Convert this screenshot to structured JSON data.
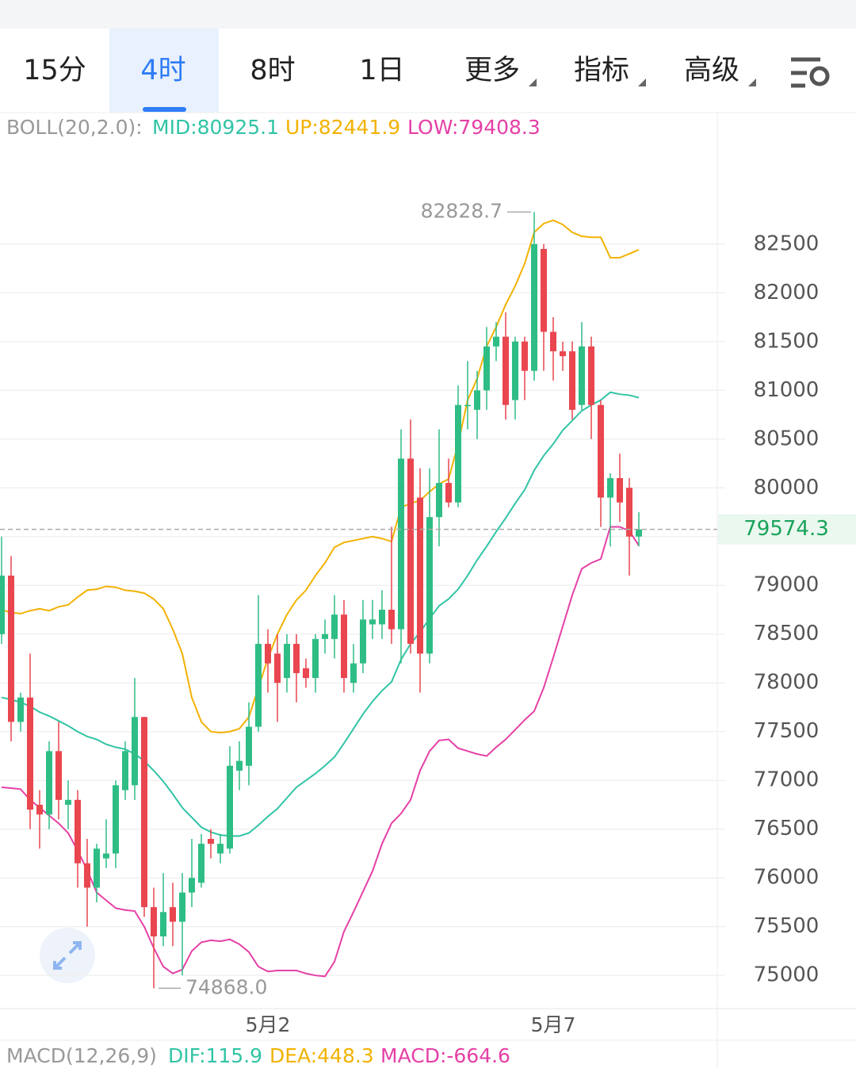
{
  "tabs": [
    "15分",
    "4时",
    "8时",
    "1日",
    "更多",
    "指标",
    "高级"
  ],
  "active_tab": 1,
  "chart_data": {
    "type": "candlestick",
    "indicator": "BOLL(20,2.0):",
    "categories": [
      null,
      null,
      null,
      null,
      null,
      null,
      null,
      null,
      null,
      null,
      null,
      null,
      null,
      null,
      null,
      null,
      null,
      null,
      null,
      null,
      null,
      null,
      null,
      null,
      null,
      null,
      null,
      null,
      "5月2",
      null,
      null,
      null,
      null,
      null,
      null,
      null,
      null,
      null,
      null,
      null,
      null,
      null,
      null,
      null,
      null,
      null,
      null,
      null,
      null,
      null,
      null,
      null,
      null,
      null,
      null,
      null,
      null,
      null,
      "5月7",
      null,
      null,
      null,
      null,
      null,
      null,
      null,
      null,
      null
    ],
    "open": [
      78500,
      79100,
      77600,
      77850,
      76750,
      76650,
      77300,
      76750,
      76800,
      76150,
      75900,
      76200,
      76250,
      76900,
      76950,
      77650,
      75700,
      75400,
      75700,
      75550,
      75850,
      75950,
      76400,
      76250,
      76300,
      77100,
      77150,
      77550,
      78400,
      78300,
      78050,
      78400,
      78150,
      78050,
      78450,
      78450,
      78700,
      78000,
      78200,
      78600,
      78600,
      78750,
      78550,
      80300,
      79900,
      78300,
      79700,
      80050,
      79850,
      80850,
      80800,
      81000,
      81450,
      81550,
      80900,
      81500,
      81200,
      82450,
      81600,
      81400,
      81400,
      80850,
      81450,
      80850,
      79900,
      80100,
      80000,
      79500
    ],
    "high": [
      79500,
      79300,
      77900,
      78300,
      76900,
      77400,
      77600,
      77000,
      76900,
      76400,
      76350,
      76600,
      77000,
      77400,
      78050,
      77650,
      75900,
      76050,
      75950,
      76050,
      76400,
      76450,
      76500,
      76450,
      77350,
      77400,
      77800,
      78900,
      78550,
      78500,
      78500,
      78500,
      78250,
      78500,
      78650,
      78900,
      78850,
      78400,
      78850,
      78850,
      78950,
      79600,
      80600,
      80700,
      80200,
      80200,
      80600,
      80300,
      81050,
      81300,
      81200,
      81650,
      81700,
      81800,
      81550,
      81550,
      82828.7,
      82500,
      81750,
      81500,
      81500,
      81700,
      81550,
      80900,
      80150,
      80350,
      80100,
      79750
    ],
    "low": [
      78400,
      77400,
      77500,
      76500,
      76300,
      76500,
      76600,
      76500,
      75900,
      75500,
      75750,
      76100,
      76100,
      76800,
      76800,
      75600,
      74868,
      75300,
      75300,
      75000,
      75700,
      75900,
      76200,
      76150,
      76250,
      76900,
      76950,
      77500,
      77900,
      77600,
      77900,
      77800,
      77950,
      77900,
      78300,
      78250,
      77900,
      77900,
      78100,
      78450,
      78450,
      78400,
      78200,
      78300,
      77900,
      78200,
      79400,
      79800,
      79800,
      80600,
      80500,
      80800,
      81300,
      80700,
      80700,
      80900,
      81100,
      81200,
      81100,
      81200,
      80700,
      80800,
      80500,
      79600,
      79400,
      79650,
      79100,
      79400
    ],
    "close": [
      79100,
      77600,
      77850,
      76700,
      76650,
      77300,
      76800,
      76800,
      76150,
      75900,
      76300,
      76250,
      76950,
      77300,
      77650,
      75700,
      75400,
      75650,
      75550,
      75850,
      76000,
      76350,
      76350,
      76350,
      77150,
      77200,
      77550,
      78400,
      78200,
      78000,
      78400,
      78100,
      78050,
      78450,
      78500,
      78700,
      78050,
      78200,
      78650,
      78650,
      78750,
      78550,
      80300,
      78400,
      78300,
      79700,
      80050,
      79850,
      80850,
      80850,
      81000,
      81450,
      81550,
      80850,
      81500,
      81200,
      82500,
      81600,
      81400,
      81350,
      80800,
      81450,
      80850,
      79900,
      80100,
      79850,
      79500,
      79574.3
    ],
    "up_color": "#2ebd85",
    "down_color": "#e9464f",
    "series": [
      {
        "name": "MID:80925.1",
        "color": "#31c4a5",
        "values": [
          77850,
          77830,
          77800,
          77760,
          77700,
          77660,
          77610,
          77560,
          77500,
          77450,
          77420,
          77370,
          77340,
          77320,
          77270,
          77200,
          77100,
          76990,
          76860,
          76720,
          76620,
          76520,
          76470,
          76440,
          76430,
          76430,
          76460,
          76540,
          76630,
          76710,
          76820,
          76930,
          77000,
          77070,
          77150,
          77240,
          77380,
          77530,
          77680,
          77810,
          77920,
          78010,
          78240,
          78400,
          78520,
          78660,
          78790,
          78860,
          78960,
          79100,
          79260,
          79400,
          79550,
          79690,
          79840,
          79980,
          80180,
          80330,
          80450,
          80590,
          80690,
          80790,
          80850,
          80900,
          80980,
          80960,
          80950,
          80925.1
        ]
      },
      {
        "name": "UP:82441.9",
        "color": "#f2b203",
        "values": [
          78750,
          78720,
          78710,
          78740,
          78760,
          78740,
          78780,
          78800,
          78880,
          78950,
          78960,
          78990,
          78980,
          78950,
          78940,
          78920,
          78860,
          78760,
          78550,
          78300,
          77850,
          77600,
          77500,
          77490,
          77500,
          77530,
          77650,
          77950,
          78250,
          78500,
          78700,
          78850,
          78950,
          79100,
          79230,
          79390,
          79440,
          79460,
          79480,
          79500,
          79480,
          79450,
          79800,
          79840,
          79870,
          79960,
          80040,
          80090,
          80450,
          80900,
          81120,
          81450,
          81650,
          81880,
          82070,
          82300,
          82620,
          82710,
          82744,
          82700,
          82620,
          82580,
          82570,
          82570,
          82360,
          82360,
          82400,
          82441.9
        ]
      },
      {
        "name": "LOW:79408.3",
        "color": "#e540a6",
        "values": [
          76930,
          76920,
          76910,
          76800,
          76720,
          76640,
          76560,
          76460,
          76280,
          76080,
          75850,
          75770,
          75690,
          75670,
          75660,
          75500,
          75280,
          75090,
          75020,
          75060,
          75250,
          75340,
          75360,
          75350,
          75370,
          75320,
          75240,
          75090,
          75040,
          75050,
          75050,
          75050,
          75020,
          75000,
          74990,
          75140,
          75450,
          75650,
          75860,
          76070,
          76350,
          76560,
          76660,
          76800,
          77100,
          77300,
          77410,
          77420,
          77330,
          77300,
          77270,
          77250,
          77340,
          77420,
          77520,
          77620,
          77710,
          77950,
          78260,
          78580,
          78900,
          79170,
          79230,
          79270,
          79600,
          79600,
          79560,
          79408.3
        ]
      }
    ],
    "max_label": "82828.7",
    "min_label": "74868.0",
    "ylim": [
      74660,
      83840
    ],
    "yticks": [
      75000,
      75500,
      76000,
      76500,
      77000,
      77500,
      78000,
      78500,
      79000,
      79500,
      80000,
      80500,
      81000,
      81500,
      82000,
      82500
    ],
    "grid": true
  },
  "footer": [
    {
      "text": "MACD(12,26,9)",
      "color": "#999999"
    },
    {
      "text": "DIF:115.9",
      "color": "#31c4a5"
    },
    {
      "text": "DEA:448.3",
      "color": "#f2b203"
    },
    {
      "text": "MACD:-664.6",
      "color": "#e540a6"
    }
  ]
}
